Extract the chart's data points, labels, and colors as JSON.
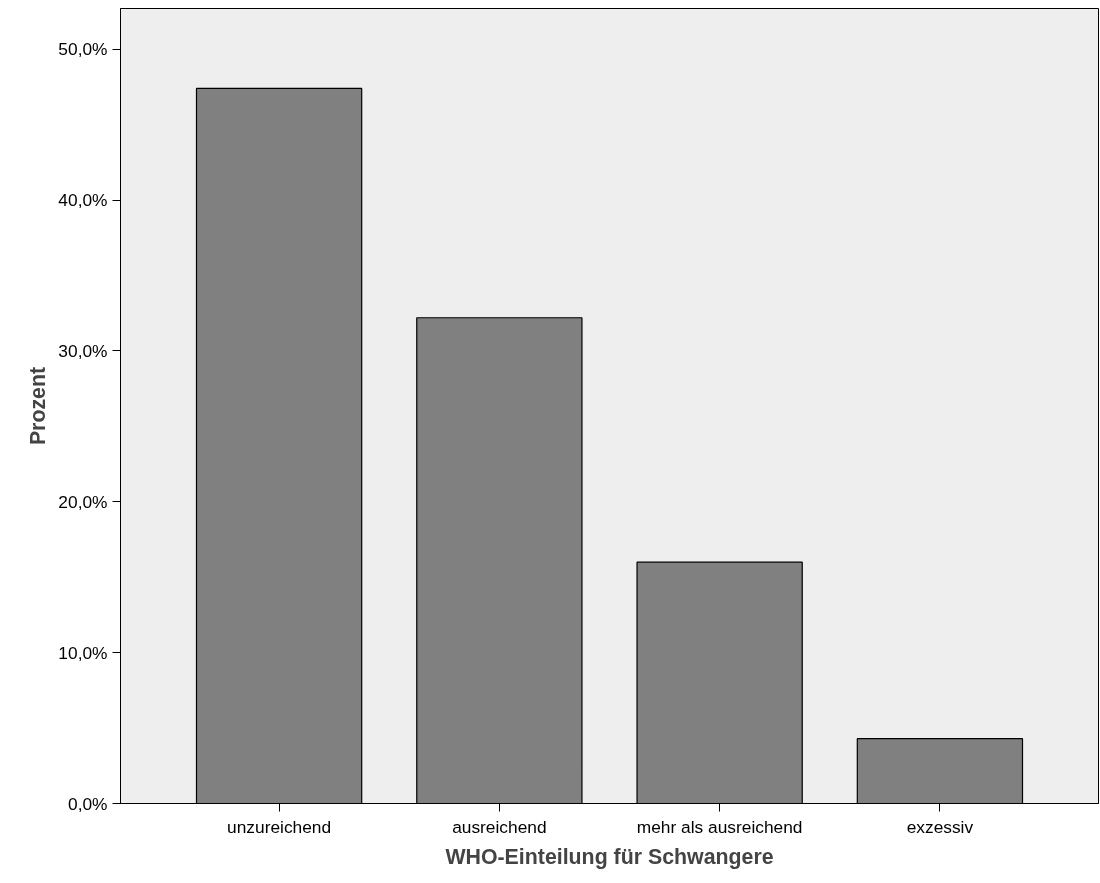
{
  "chart_data": {
    "type": "bar",
    "xlabel": "WHO-Einteilung für Schwangere",
    "ylabel": "Prozent",
    "categories": [
      "unzureichend",
      "ausreichend",
      "mehr als ausreichend",
      "exzessiv"
    ],
    "values": [
      47.4,
      32.2,
      16.0,
      4.3
    ],
    "color": "#808080",
    "ylim": [
      0,
      52.7
    ],
    "yticks": [
      {
        "value": 0,
        "label": "0,0%"
      },
      {
        "value": 10,
        "label": "10,0%"
      },
      {
        "value": 20,
        "label": "20,0%"
      },
      {
        "value": 30,
        "label": "30,0%"
      },
      {
        "value": 40,
        "label": "40,0%"
      },
      {
        "value": 50,
        "label": "50,0%"
      }
    ],
    "grid": false
  }
}
